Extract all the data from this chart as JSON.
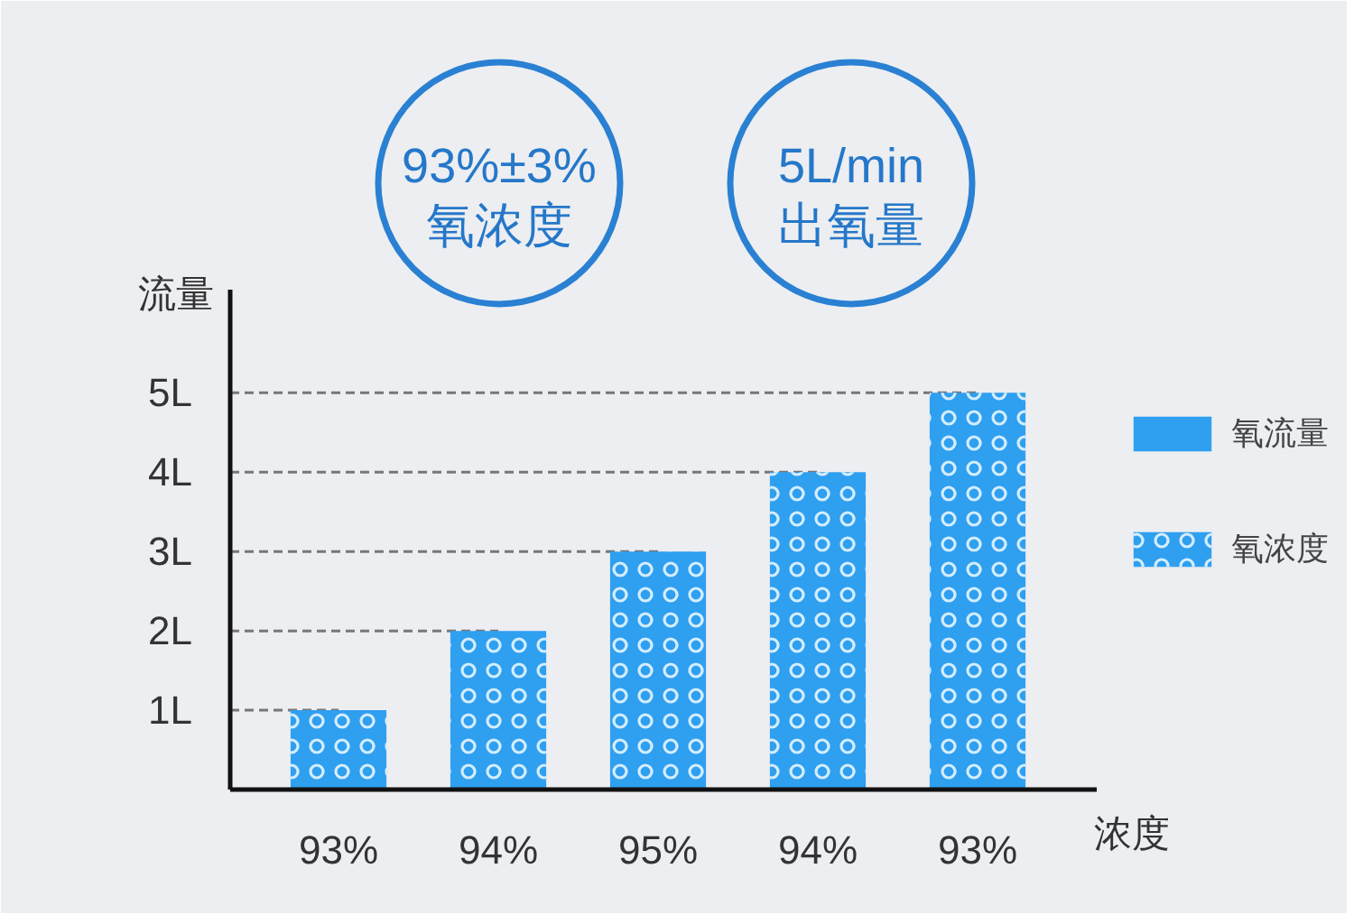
{
  "chart_data": {
    "type": "bar",
    "xlabel": "浓度",
    "ylabel": "流量",
    "categories": [
      "93%",
      "94%",
      "95%",
      "94%",
      "93%"
    ],
    "series": [
      {
        "name": "氧流量",
        "color": "#2f9ff0",
        "values": [
          1,
          2,
          3,
          4,
          5
        ]
      },
      {
        "name": "氧浓度",
        "color": "#e4f5ff",
        "values": [
          null,
          null,
          null,
          null,
          null
        ]
      }
    ],
    "ylim": [
      0,
      6.3
    ],
    "yticks": [
      {
        "value": 1,
        "label": "1L"
      },
      {
        "value": 2,
        "label": "2L"
      },
      {
        "value": 3,
        "label": "3L"
      },
      {
        "value": 4,
        "label": "4L"
      },
      {
        "value": 5,
        "label": "5L"
      }
    ],
    "ref_lines": [
      {
        "axis": "y",
        "value": 1,
        "color": "#777777",
        "line_style": "dashed"
      },
      {
        "axis": "y",
        "value": 2,
        "color": "#777777",
        "line_style": "dashed"
      },
      {
        "axis": "y",
        "value": 3,
        "color": "#777777",
        "line_style": "dashed"
      },
      {
        "axis": "y",
        "value": 4,
        "color": "#777777",
        "line_style": "dashed"
      },
      {
        "axis": "y",
        "value": 5,
        "color": "#777777",
        "line_style": "dashed"
      }
    ],
    "legend": "right",
    "annotations": [
      "93%±3%\n氧浓度",
      "5L/min\n出氧量"
    ]
  }
}
